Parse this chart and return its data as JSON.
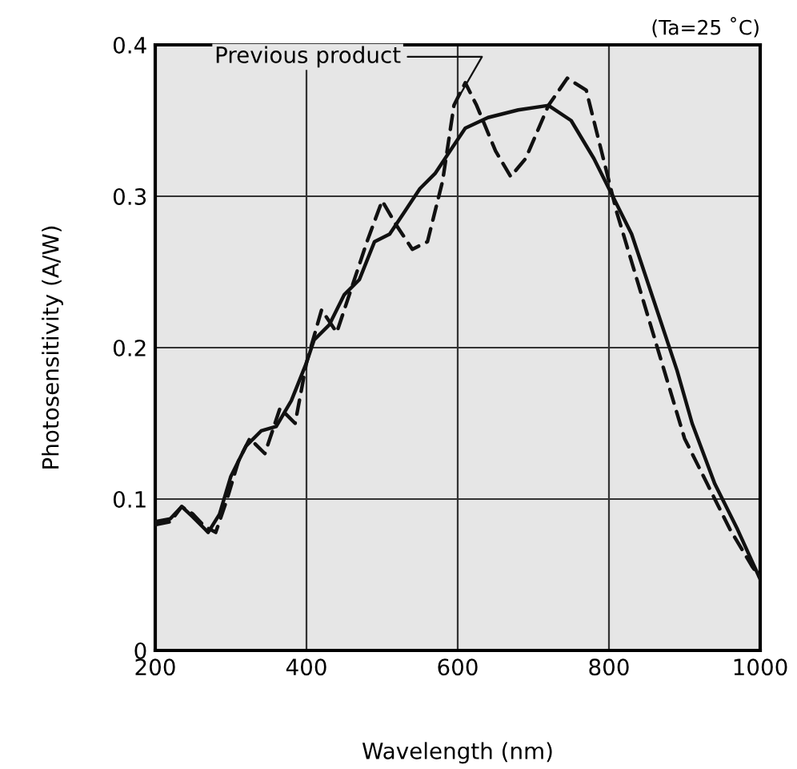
{
  "chart_data": {
    "type": "line",
    "xlabel": "Wavelength (nm)",
    "ylabel": "Photosensitivity (A/W)",
    "xlim": [
      200,
      1000
    ],
    "xticks": [
      200,
      400,
      600,
      800,
      1000
    ],
    "ylim": [
      0,
      0.4
    ],
    "yticks": [
      0,
      0.1,
      0.2,
      0.3,
      0.4
    ],
    "grid": true,
    "legend": false,
    "marker": "none",
    "annotations": [
      "(Ta=25 ˚C)"
    ],
    "series": [
      {
        "color": "#111111",
        "line_style": "solid",
        "x": [
          200,
          220,
          235,
          250,
          270,
          285,
          300,
          320,
          340,
          360,
          380,
          400,
          410,
          430,
          450,
          470,
          490,
          510,
          530,
          550,
          570,
          590,
          610,
          640,
          680,
          720,
          750,
          780,
          800,
          830,
          860,
          890,
          910,
          940,
          970,
          1000
        ],
        "values": [
          0.085,
          0.087,
          0.095,
          0.088,
          0.078,
          0.09,
          0.115,
          0.135,
          0.145,
          0.148,
          0.165,
          0.19,
          0.205,
          0.215,
          0.235,
          0.245,
          0.27,
          0.275,
          0.29,
          0.305,
          0.315,
          0.33,
          0.345,
          0.352,
          0.357,
          0.36,
          0.35,
          0.325,
          0.305,
          0.275,
          0.23,
          0.185,
          0.15,
          0.11,
          0.08,
          0.047
        ]
      },
      {
        "name": "Previous product",
        "color": "#111111",
        "line_style": "dashed",
        "x": [
          200,
          220,
          235,
          250,
          265,
          280,
          295,
          310,
          325,
          345,
          365,
          385,
          400,
          420,
          440,
          460,
          480,
          500,
          520,
          540,
          560,
          580,
          595,
          610,
          625,
          650,
          670,
          690,
          720,
          745,
          770,
          790,
          810,
          840,
          870,
          900,
          930,
          960,
          990,
          1000
        ],
        "values": [
          0.083,
          0.085,
          0.095,
          0.09,
          0.082,
          0.078,
          0.1,
          0.125,
          0.14,
          0.13,
          0.16,
          0.15,
          0.19,
          0.225,
          0.21,
          0.24,
          0.27,
          0.297,
          0.28,
          0.265,
          0.27,
          0.31,
          0.36,
          0.375,
          0.36,
          0.33,
          0.313,
          0.325,
          0.36,
          0.378,
          0.37,
          0.33,
          0.29,
          0.24,
          0.19,
          0.14,
          0.11,
          0.08,
          0.055,
          0.048
        ]
      }
    ]
  }
}
